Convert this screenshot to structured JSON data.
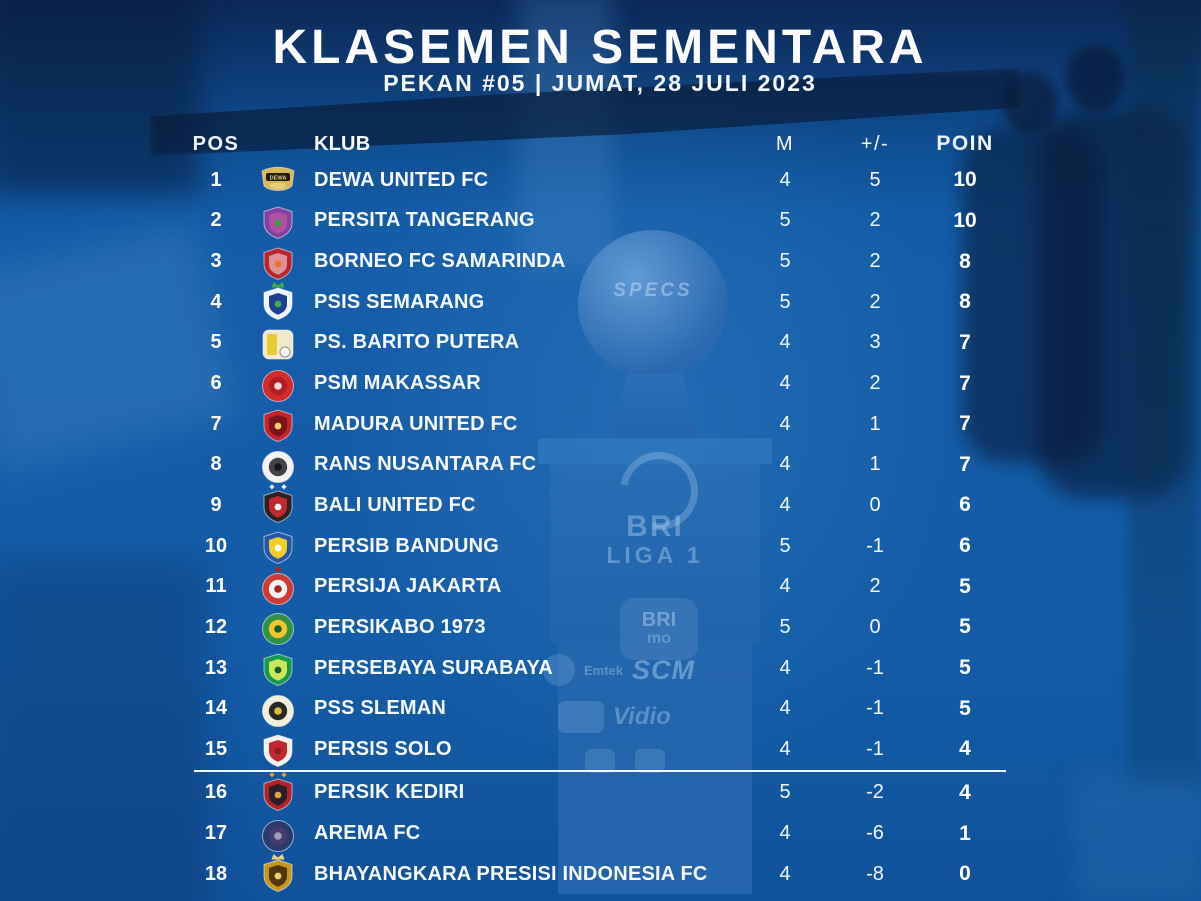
{
  "chart_data": {
    "type": "table",
    "title": "KLASEMEN SEMENTARA",
    "subtitle": "PEKAN #05 | JUMAT, 28 JULI 2023",
    "columns": [
      "POS",
      "KLUB",
      "M",
      "+/-",
      "POIN"
    ],
    "relegation_line_after_row": 15,
    "rows": [
      {
        "pos": "1",
        "klub": "DEWA UNITED FC",
        "m": "4",
        "diff": "5",
        "poin": "10",
        "logo": "dewa-united-fc-logo-icon",
        "shape": "wideshield",
        "colors": [
          "#d9b859",
          "#211c12",
          "#e8cd7c"
        ],
        "label": "DEWA"
      },
      {
        "pos": "2",
        "klub": "PERSITA TANGERANG",
        "m": "5",
        "diff": "2",
        "poin": "10",
        "logo": "persita-tangerang-logo-icon",
        "shape": "shield",
        "colors": [
          "#8243a0",
          "#b14fa5",
          "#3f9b45"
        ]
      },
      {
        "pos": "3",
        "klub": "BORNEO FC SAMARINDA",
        "m": "5",
        "diff": "2",
        "poin": "8",
        "logo": "borneo-fc-samarinda-logo-icon",
        "shape": "shield",
        "colors": [
          "#b8262d",
          "#de9296",
          "#e8732a"
        ]
      },
      {
        "pos": "4",
        "klub": "PSIS SEMARANG",
        "m": "5",
        "diff": "2",
        "poin": "8",
        "logo": "psis-semarang-logo-icon",
        "shape": "shield",
        "colors": [
          "#eff3f9",
          "#1e4094",
          "#3fae4a"
        ],
        "top": "crown"
      },
      {
        "pos": "5",
        "klub": "PS. BARITO PUTERA",
        "m": "4",
        "diff": "3",
        "poin": "7",
        "logo": "barito-putera-logo-icon",
        "shape": "square",
        "colors": [
          "#f1e9cc",
          "#e9cb35",
          "#f8f8f8"
        ]
      },
      {
        "pos": "6",
        "klub": "PSM MAKASSAR",
        "m": "4",
        "diff": "2",
        "poin": "7",
        "logo": "psm-makassar-logo-icon",
        "shape": "circle",
        "colors": [
          "#d32b2a",
          "#b21e20",
          "#f3d9d9"
        ]
      },
      {
        "pos": "7",
        "klub": "MADURA UNITED FC",
        "m": "4",
        "diff": "1",
        "poin": "7",
        "logo": "madura-united-fc-logo-icon",
        "shape": "shield",
        "colors": [
          "#c42329",
          "#7a1418",
          "#f2d06a"
        ]
      },
      {
        "pos": "8",
        "klub": "RANS NUSANTARA FC",
        "m": "4",
        "diff": "1",
        "poin": "7",
        "logo": "rans-nusantara-fc-logo-icon",
        "shape": "circle",
        "colors": [
          "#f2f2f2",
          "#434347",
          "#141416"
        ]
      },
      {
        "pos": "9",
        "klub": "BALI UNITED FC",
        "m": "4",
        "diff": "0",
        "poin": "6",
        "logo": "bali-united-fc-logo-icon",
        "shape": "shield",
        "colors": [
          "#2b2320",
          "#c1272d",
          "#f4f4f4"
        ],
        "top": "stars"
      },
      {
        "pos": "10",
        "klub": "PERSIB BANDUNG",
        "m": "5",
        "diff": "-1",
        "poin": "6",
        "logo": "persib-bandung-logo-icon",
        "shape": "shield",
        "colors": [
          "#2457a8",
          "#f2cd22",
          "#ffffff"
        ]
      },
      {
        "pos": "11",
        "klub": "PERSIJA JAKARTA",
        "m": "4",
        "diff": "2",
        "poin": "5",
        "logo": "persija-jakarta-logo-icon",
        "shape": "circle",
        "colors": [
          "#d13a33",
          "#f4f4f4",
          "#a82621"
        ],
        "top": "star"
      },
      {
        "pos": "12",
        "klub": "PERSIKABO 1973",
        "m": "5",
        "diff": "0",
        "poin": "5",
        "logo": "persikabo-1973-logo-icon",
        "shape": "circle",
        "colors": [
          "#2f9148",
          "#f2c72e",
          "#185c2c"
        ]
      },
      {
        "pos": "13",
        "klub": "PERSEBAYA SURABAYA",
        "m": "4",
        "diff": "-1",
        "poin": "5",
        "logo": "persebaya-surabaya-logo-icon",
        "shape": "shield",
        "colors": [
          "#14994d",
          "#cde65a",
          "#0b5e2e"
        ]
      },
      {
        "pos": "14",
        "klub": "PSS SLEMAN",
        "m": "4",
        "diff": "-1",
        "poin": "5",
        "logo": "pss-sleman-logo-icon",
        "shape": "circle",
        "colors": [
          "#f2eedb",
          "#2a2822",
          "#d8bf3a"
        ]
      },
      {
        "pos": "15",
        "klub": "PERSIS SOLO",
        "m": "4",
        "diff": "-1",
        "poin": "4",
        "logo": "persis-solo-logo-icon",
        "shape": "shield",
        "colors": [
          "#f5f2ee",
          "#c2272e",
          "#8e1b21"
        ]
      },
      {
        "pos": "16",
        "klub": "PERSIK KEDIRI",
        "m": "5",
        "diff": "-2",
        "poin": "4",
        "logo": "persik-kediri-logo-icon",
        "shape": "shield",
        "colors": [
          "#b2222a",
          "#26202a",
          "#d9a83c"
        ],
        "top": "stars"
      },
      {
        "pos": "17",
        "klub": "AREMA FC",
        "m": "4",
        "diff": "-6",
        "poin": "1",
        "logo": "arema-fc-logo-icon",
        "shape": "circle",
        "colors": [
          "#2a3a6d",
          "#4a3a72",
          "#9aa4b8"
        ]
      },
      {
        "pos": "18",
        "klub": "BHAYANGKARA PRESISI INDONESIA FC",
        "m": "4",
        "diff": "-8",
        "poin": "0",
        "logo": "bhayangkara-fc-logo-icon",
        "shape": "shield",
        "colors": [
          "#c6961d",
          "#52350f",
          "#edd27c"
        ],
        "top": "crown"
      }
    ]
  },
  "background": {
    "ball_brand": "SPECS",
    "league_wordmark_line1": "BRI",
    "league_wordmark_line2": "LIGA 1",
    "sponsor_brimo_top": "BRI",
    "sponsor_brimo_bottom": "mo",
    "sponsor_emtek": "Emtek",
    "sponsor_scm": "SCM",
    "sponsor_vidio": "Vidio"
  },
  "colors": {
    "background_blue": "#155da8",
    "dark_navy": "#0a2450",
    "text_white": "#ffffff",
    "separator_white": "#ffffff",
    "trophy_blue": "#2d72ba"
  }
}
